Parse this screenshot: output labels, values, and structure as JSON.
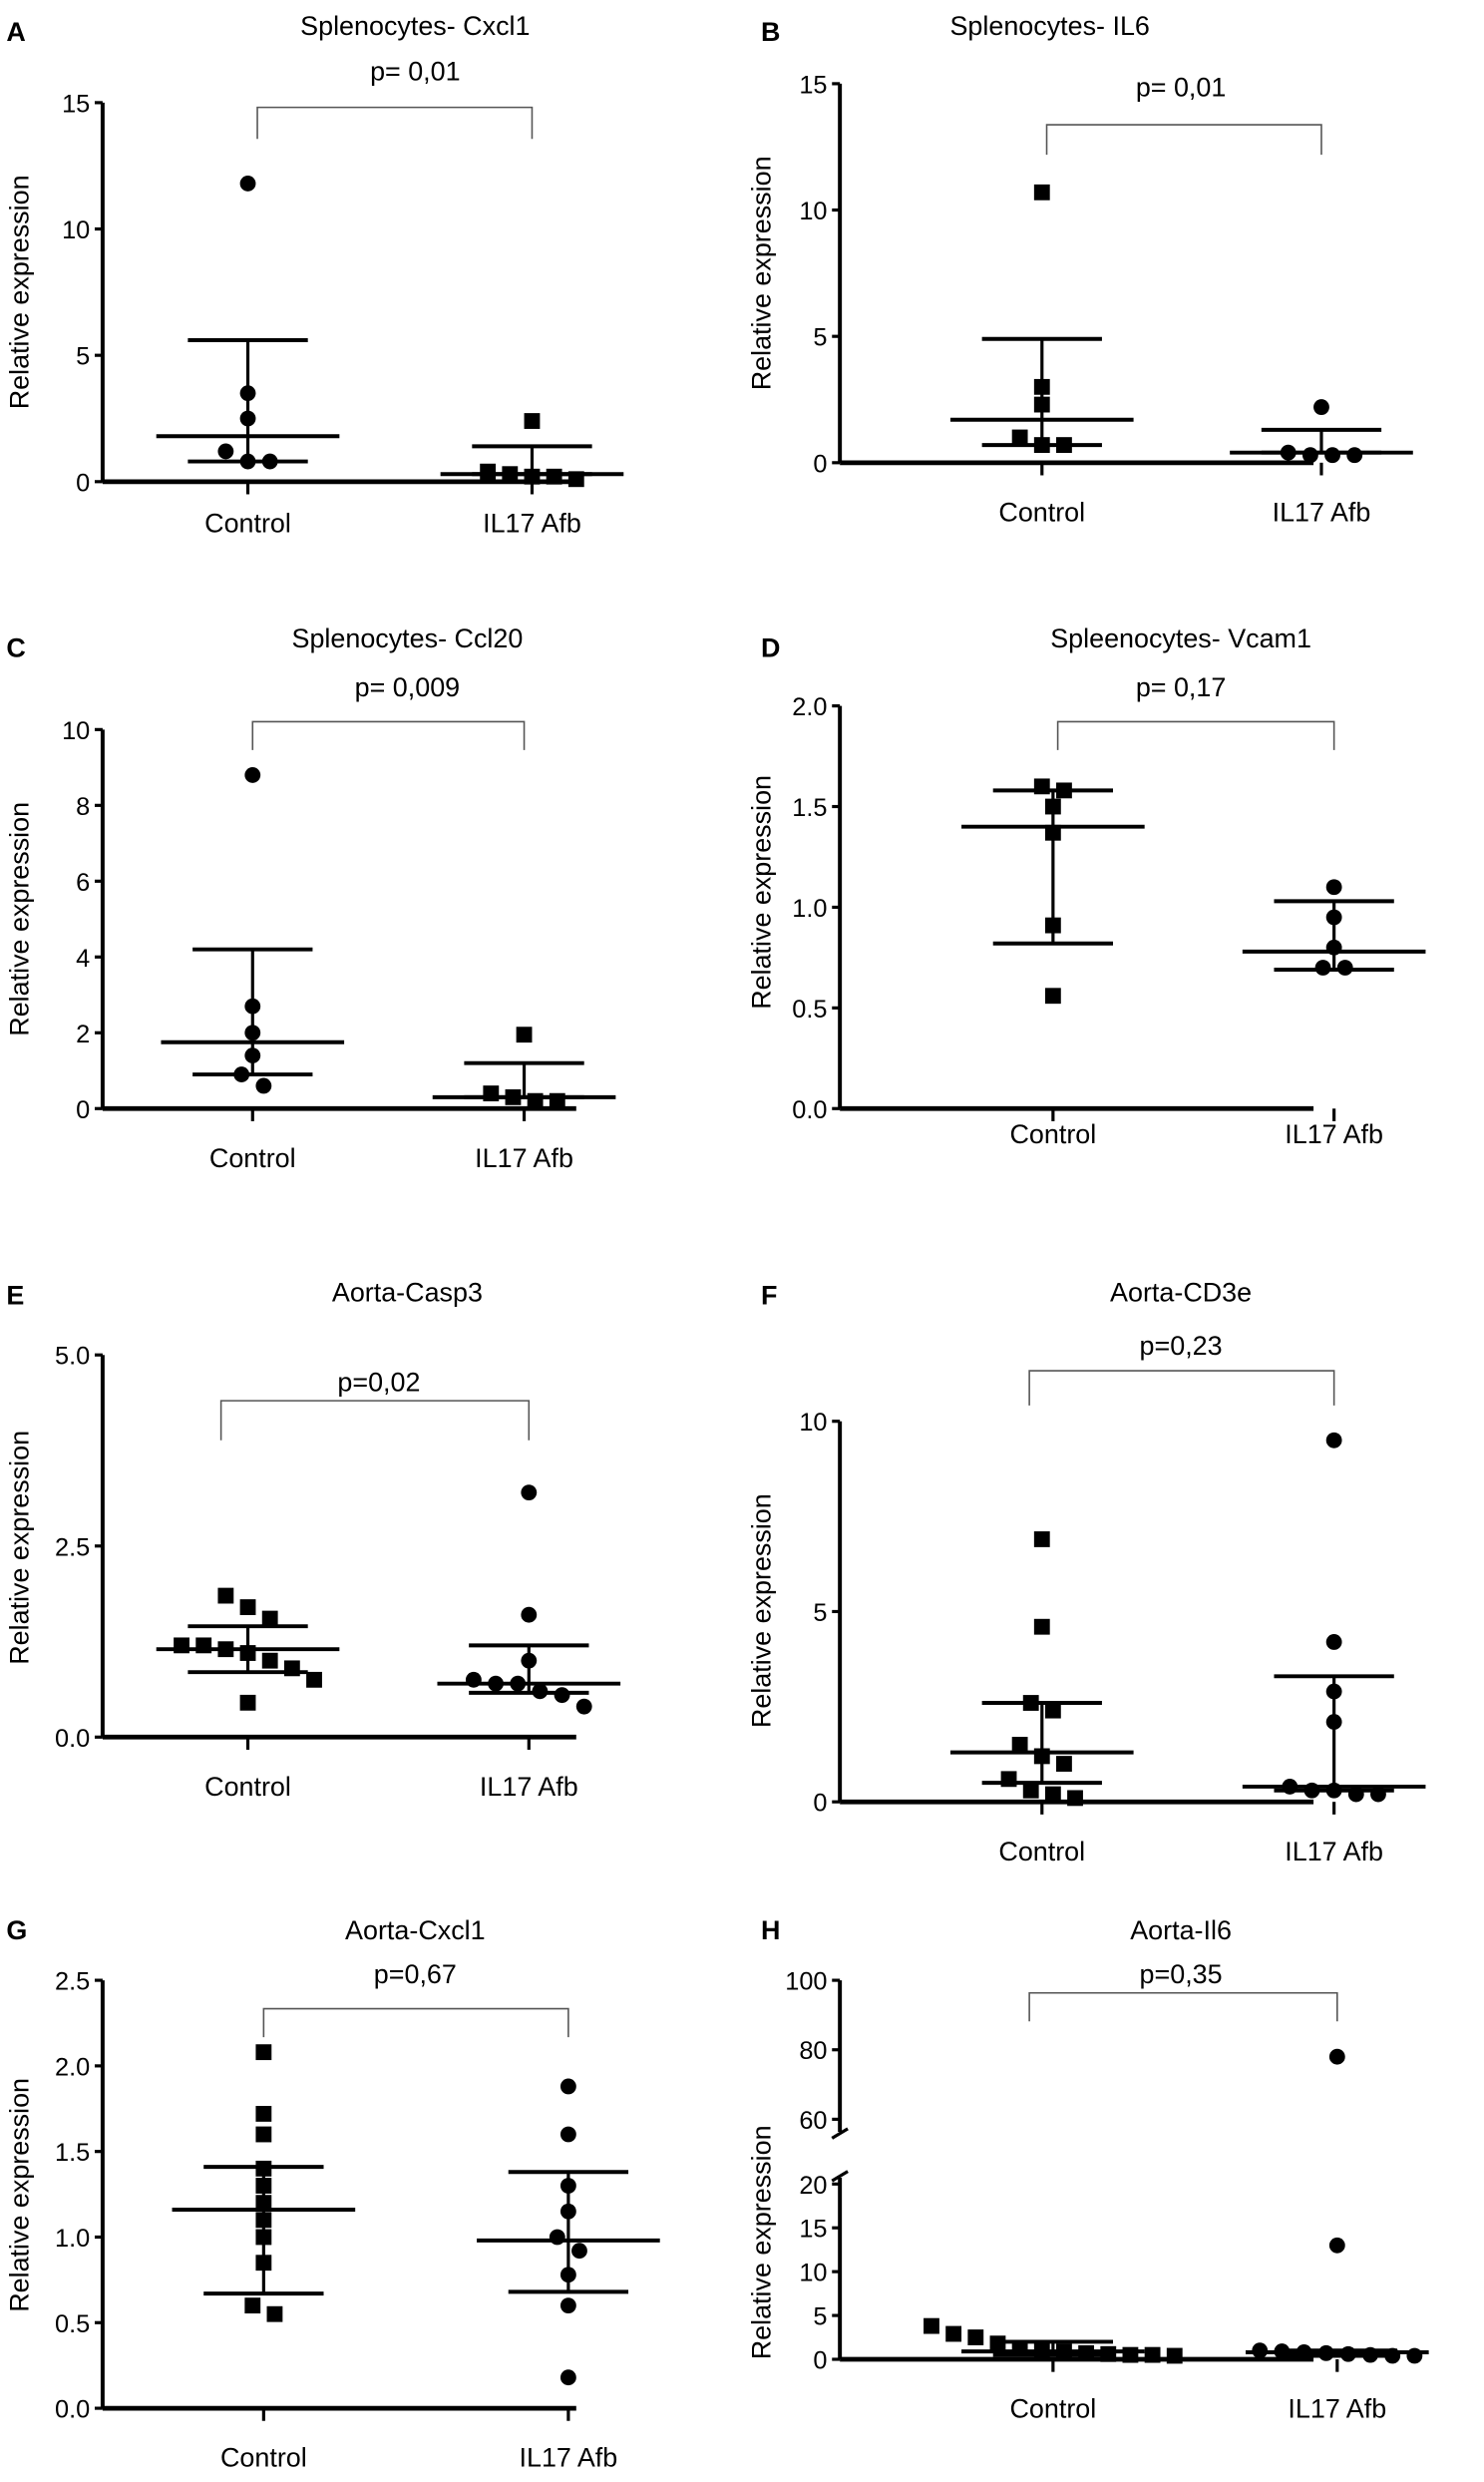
{
  "chart_data": [
    {
      "type": "scatter",
      "panel": "A",
      "title": "Splenocytes- Cxcl1",
      "p_value": "p= 0,01",
      "ylabel": "Relative expression",
      "categories": [
        "Control",
        "IL17 Afb"
      ],
      "ylim": [
        0,
        15
      ],
      "yticks": [
        0,
        5,
        10,
        15
      ],
      "ytick_labels": [
        "0",
        "5",
        "10",
        "15"
      ],
      "series": [
        {
          "name": "Control",
          "marker": "circle",
          "values": [
            11.8,
            3.5,
            2.5,
            1.2,
            0.8,
            0.8
          ],
          "median": 1.8,
          "error": [
            0.8,
            5.6
          ]
        },
        {
          "name": "IL17 Afb",
          "marker": "square",
          "values": [
            2.4,
            0.4,
            0.2,
            0.2,
            0.3,
            0.1
          ],
          "median": 0.3,
          "error": [
            0.3,
            1.4
          ]
        }
      ]
    },
    {
      "type": "scatter",
      "panel": "B",
      "title": "Splenocytes- IL6",
      "p_value": "p= 0,01",
      "ylabel": "Relative expression",
      "categories": [
        "Control",
        "IL17 Afb"
      ],
      "ylim": [
        0,
        15
      ],
      "yticks": [
        0,
        5,
        10,
        15
      ],
      "ytick_labels": [
        "0",
        "5",
        "10",
        "15"
      ],
      "series": [
        {
          "name": "Control",
          "marker": "square",
          "values": [
            10.7,
            3.0,
            2.3,
            1.0,
            0.7,
            0.7
          ],
          "median": 1.7,
          "error": [
            0.7,
            4.9
          ]
        },
        {
          "name": "IL17 Afb",
          "marker": "circle",
          "values": [
            2.2,
            0.4,
            0.3,
            0.3,
            0.3
          ],
          "median": 0.4,
          "error": [
            0.4,
            1.3
          ]
        }
      ]
    },
    {
      "type": "scatter",
      "panel": "C",
      "title": "Splenocytes- Ccl20",
      "p_value": "p= 0,009",
      "ylabel": "Relative expression",
      "categories": [
        "Control",
        "IL17 Afb"
      ],
      "ylim": [
        0,
        10
      ],
      "yticks": [
        0,
        2,
        4,
        6,
        8,
        10
      ],
      "ytick_labels": [
        "0",
        "2",
        "4",
        "6",
        "8",
        "10"
      ],
      "series": [
        {
          "name": "Control",
          "marker": "circle",
          "values": [
            8.8,
            2.7,
            2.0,
            1.4,
            0.9,
            0.6
          ],
          "median": 1.75,
          "error": [
            0.9,
            4.2
          ]
        },
        {
          "name": "IL17 Afb",
          "marker": "square",
          "values": [
            1.95,
            0.4,
            0.3,
            0.2,
            0.2
          ],
          "median": 0.3,
          "error": [
            0.3,
            1.2
          ]
        }
      ]
    },
    {
      "type": "scatter",
      "panel": "D",
      "title": "Spleenocytes- Vcam1",
      "p_value": "p= 0,17",
      "ylabel": "Relative expression",
      "categories": [
        "Control",
        "IL17 Afb"
      ],
      "ylim": [
        0,
        2
      ],
      "yticks": [
        0,
        0.5,
        1,
        1.5,
        2
      ],
      "ytick_labels": [
        "0.0",
        "0.5",
        "1.0",
        "1.5",
        "2.0"
      ],
      "series": [
        {
          "name": "Control",
          "marker": "square",
          "values": [
            1.6,
            1.58,
            1.5,
            1.37,
            0.91,
            0.56
          ],
          "median": 1.4,
          "error": [
            0.82,
            1.58
          ]
        },
        {
          "name": "IL17 Afb",
          "marker": "circle",
          "values": [
            1.1,
            0.95,
            0.8,
            0.7,
            0.7
          ],
          "median": 0.78,
          "error": [
            0.69,
            1.03
          ]
        }
      ]
    },
    {
      "type": "scatter",
      "panel": "E",
      "title": "Aorta-Casp3",
      "p_value": "p=0,02",
      "ylabel": "Relative expression",
      "categories": [
        "Control",
        "IL17 Afb"
      ],
      "ylim": [
        0,
        5
      ],
      "yticks": [
        0,
        2.5,
        5
      ],
      "ytick_labels": [
        "0.0",
        "2.5",
        "5.0"
      ],
      "series": [
        {
          "name": "Control",
          "marker": "square",
          "values": [
            1.85,
            1.7,
            1.55,
            1.2,
            1.2,
            1.15,
            1.1,
            1.0,
            0.9,
            0.75,
            0.45
          ],
          "median": 1.15,
          "error": [
            0.85,
            1.45
          ]
        },
        {
          "name": "IL17 Afb",
          "marker": "circle",
          "values": [
            3.2,
            1.6,
            1.0,
            0.75,
            0.7,
            0.7,
            0.6,
            0.55,
            0.4
          ],
          "median": 0.7,
          "error": [
            0.58,
            1.2
          ]
        }
      ]
    },
    {
      "type": "scatter",
      "panel": "F",
      "title": "Aorta-CD3e",
      "p_value": "p=0,23",
      "ylabel": "Relative expression",
      "categories": [
        "Control",
        "IL17 Afb"
      ],
      "ylim": [
        0,
        10
      ],
      "yticks": [
        0,
        5,
        10
      ],
      "ytick_labels": [
        "0",
        "5",
        "10"
      ],
      "series": [
        {
          "name": "Control",
          "marker": "square",
          "values": [
            6.9,
            4.6,
            2.6,
            2.4,
            1.5,
            1.2,
            1.0,
            0.6,
            0.3,
            0.2,
            0.1
          ],
          "median": 1.3,
          "error": [
            0.5,
            2.6
          ]
        },
        {
          "name": "IL17 Afb",
          "marker": "circle",
          "values": [
            9.5,
            4.2,
            2.9,
            2.1,
            0.4,
            0.3,
            0.3,
            0.2,
            0.2
          ],
          "median": 0.4,
          "error": [
            0.3,
            3.3
          ]
        }
      ]
    },
    {
      "type": "scatter",
      "panel": "G",
      "title": "Aorta-Cxcl1",
      "p_value": "p=0,67",
      "ylabel": "Relative expression",
      "categories": [
        "Control",
        "IL17 Afb"
      ],
      "ylim": [
        0,
        2.5
      ],
      "yticks": [
        0,
        0.5,
        1,
        1.5,
        2,
        2.5
      ],
      "ytick_labels": [
        "0.0",
        "0.5",
        "1.0",
        "1.5",
        "2.0",
        "2.5"
      ],
      "series": [
        {
          "name": "Control",
          "marker": "square",
          "values": [
            2.08,
            1.72,
            1.6,
            1.4,
            1.3,
            1.2,
            1.1,
            1.0,
            0.85,
            0.6,
            0.55
          ],
          "median": 1.16,
          "error": [
            0.67,
            1.41
          ]
        },
        {
          "name": "IL17 Afb",
          "marker": "circle",
          "values": [
            1.88,
            1.6,
            1.3,
            1.15,
            1.0,
            0.92,
            0.78,
            0.6,
            0.18
          ],
          "median": 0.98,
          "error": [
            0.68,
            1.38
          ]
        }
      ]
    },
    {
      "type": "scatter",
      "panel": "H",
      "title": "Aorta-Il6",
      "p_value": "p=0,35",
      "ylabel": "Relative expression",
      "categories": [
        "Control",
        "IL17 Afb"
      ],
      "ylim": [
        0,
        100
      ],
      "axis_break": [
        20,
        60
      ],
      "yticks": [
        0,
        5,
        10,
        15,
        20,
        60,
        80,
        100
      ],
      "ytick_labels": [
        "0",
        "5",
        "10",
        "15",
        "20",
        "60",
        "80",
        "100"
      ],
      "series": [
        {
          "name": "Control",
          "marker": "square",
          "values": [
            3.8,
            2.9,
            2.5,
            1.8,
            1.2,
            1.0,
            0.9,
            0.7,
            0.6,
            0.5,
            0.5,
            0.4
          ],
          "median": 0.9,
          "error": [
            0.5,
            2.0
          ]
        },
        {
          "name": "IL17 Afb",
          "marker": "circle",
          "values": [
            78,
            13,
            1.0,
            0.9,
            0.8,
            0.7,
            0.6,
            0.5,
            0.4,
            0.4
          ],
          "median": 0.8,
          "error": [
            0.4,
            1.0
          ]
        }
      ]
    }
  ]
}
